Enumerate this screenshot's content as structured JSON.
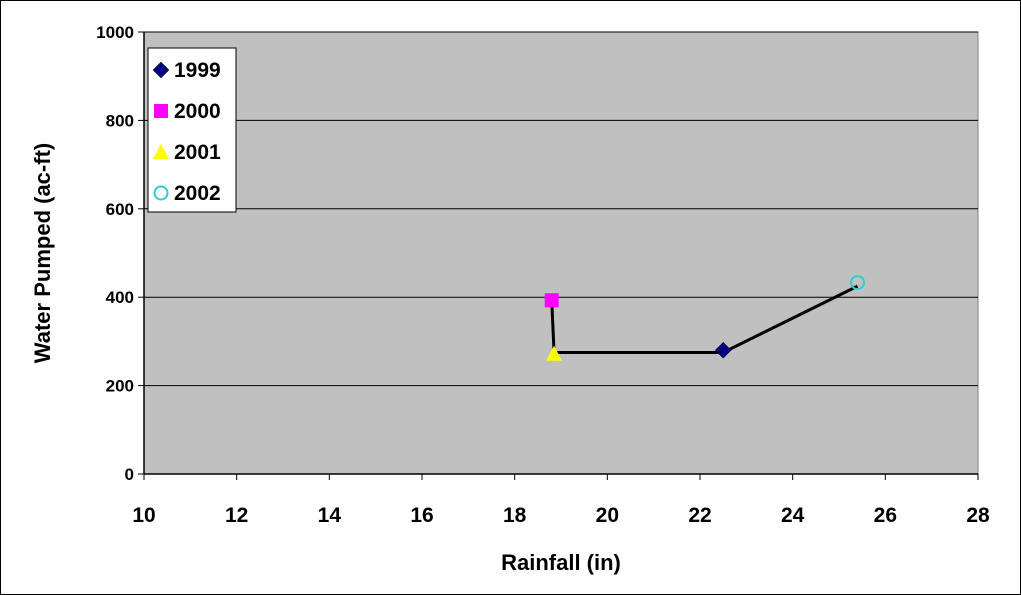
{
  "chart_data": {
    "type": "scatter",
    "title": "",
    "xlabel": "Rainfall (in)",
    "ylabel": "Water Pumped (ac-ft)",
    "xlim": [
      10,
      28
    ],
    "ylim": [
      0,
      1000
    ],
    "xticks": [
      10,
      12,
      14,
      16,
      18,
      20,
      22,
      24,
      26,
      28
    ],
    "yticks": [
      0,
      200,
      400,
      600,
      800,
      1000
    ],
    "grid": "horizontal",
    "legend": "top-left",
    "plot_background": "#C0C0C0",
    "series": [
      {
        "name": "1999",
        "marker": "diamond",
        "color": "#000080",
        "x": 22.5,
        "y": 280
      },
      {
        "name": "2000",
        "marker": "square",
        "color": "#FF00FF",
        "x": 18.8,
        "y": 393
      },
      {
        "name": "2001",
        "marker": "triangle",
        "color": "#FFFF00",
        "x": 18.85,
        "y": 272
      },
      {
        "name": "2002",
        "marker": "circle-open",
        "color": "#33CCCC",
        "x": 25.4,
        "y": 433
      }
    ],
    "connector_line": {
      "color": "#000000",
      "points": [
        [
          18.8,
          393
        ],
        [
          18.85,
          275
        ],
        [
          22.5,
          275
        ],
        [
          25.4,
          425
        ]
      ]
    }
  }
}
